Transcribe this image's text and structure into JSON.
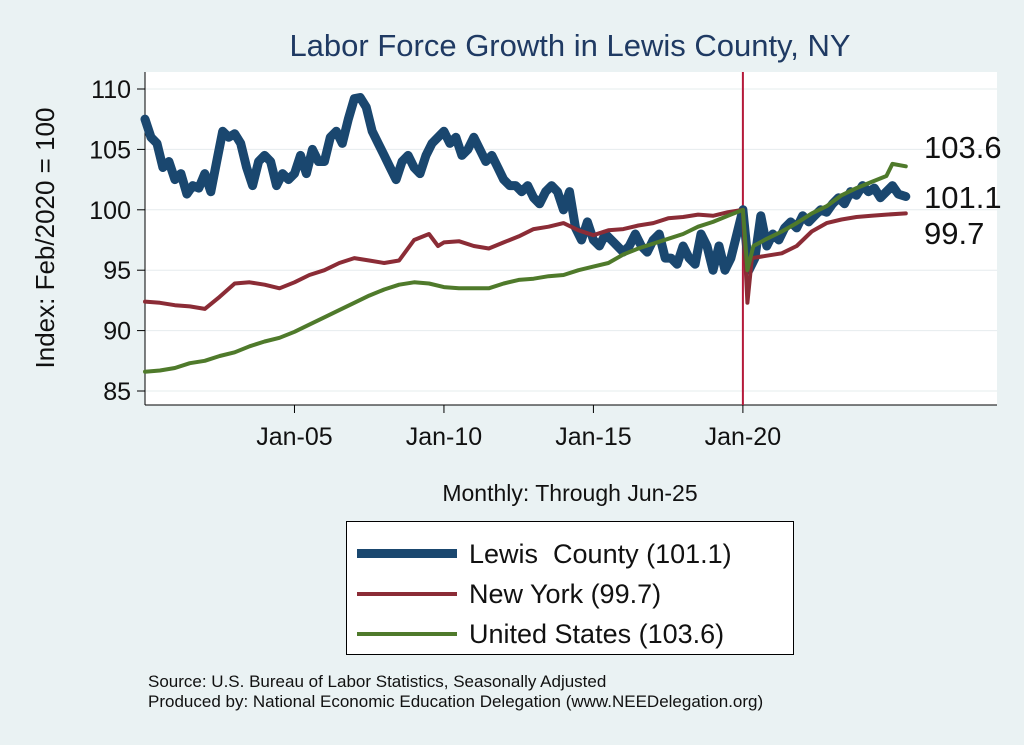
{
  "chart_data": {
    "type": "line",
    "title": "Labor Force Growth in Lewis  County, NY",
    "ylabel": "Index: Feb/2020 = 100",
    "xlabel": "Monthly: Through Jun-25",
    "ylim": [
      84,
      111
    ],
    "xlim": [
      2000.0,
      2028.5
    ],
    "yticks": [
      85,
      90,
      95,
      100,
      105,
      110
    ],
    "xticks": [
      {
        "value": 2005.0,
        "label": "Jan-05"
      },
      {
        "value": 2010.0,
        "label": "Jan-10"
      },
      {
        "value": 2015.0,
        "label": "Jan-15"
      },
      {
        "value": 2020.0,
        "label": "Jan-20"
      }
    ],
    "vline": 2020.0,
    "series": [
      {
        "name": "Lewis  County",
        "legend": "Lewis  County (101.1)",
        "end_label": "101.1",
        "color": "#1a476f",
        "width": 9,
        "points": [
          [
            2000.0,
            107.5
          ],
          [
            2000.2,
            106.0
          ],
          [
            2000.4,
            105.5
          ],
          [
            2000.6,
            103.5
          ],
          [
            2000.8,
            104.0
          ],
          [
            2001.0,
            102.5
          ],
          [
            2001.2,
            103.0
          ],
          [
            2001.4,
            101.3
          ],
          [
            2001.6,
            102.0
          ],
          [
            2001.8,
            101.8
          ],
          [
            2002.0,
            103.0
          ],
          [
            2002.2,
            101.5
          ],
          [
            2002.4,
            104.0
          ],
          [
            2002.6,
            106.5
          ],
          [
            2002.8,
            106.0
          ],
          [
            2003.0,
            106.3
          ],
          [
            2003.2,
            105.5
          ],
          [
            2003.4,
            103.5
          ],
          [
            2003.6,
            102.0
          ],
          [
            2003.8,
            104.0
          ],
          [
            2004.0,
            104.5
          ],
          [
            2004.2,
            104.0
          ],
          [
            2004.4,
            102.0
          ],
          [
            2004.6,
            103.0
          ],
          [
            2004.8,
            102.5
          ],
          [
            2005.0,
            103.0
          ],
          [
            2005.2,
            104.5
          ],
          [
            2005.4,
            103.0
          ],
          [
            2005.6,
            105.0
          ],
          [
            2005.8,
            104.0
          ],
          [
            2006.0,
            104.0
          ],
          [
            2006.2,
            106.0
          ],
          [
            2006.4,
            106.5
          ],
          [
            2006.6,
            105.5
          ],
          [
            2006.8,
            107.5
          ],
          [
            2007.0,
            109.2
          ],
          [
            2007.2,
            109.3
          ],
          [
            2007.4,
            108.5
          ],
          [
            2007.6,
            106.5
          ],
          [
            2007.8,
            105.5
          ],
          [
            2008.0,
            104.5
          ],
          [
            2008.2,
            103.5
          ],
          [
            2008.4,
            102.5
          ],
          [
            2008.6,
            104.0
          ],
          [
            2008.8,
            104.5
          ],
          [
            2009.0,
            103.5
          ],
          [
            2009.2,
            103.0
          ],
          [
            2009.4,
            104.5
          ],
          [
            2009.6,
            105.5
          ],
          [
            2009.8,
            106.0
          ],
          [
            2010.0,
            106.5
          ],
          [
            2010.2,
            105.5
          ],
          [
            2010.4,
            106.0
          ],
          [
            2010.6,
            104.5
          ],
          [
            2010.8,
            105.0
          ],
          [
            2011.0,
            106.0
          ],
          [
            2011.2,
            105.0
          ],
          [
            2011.4,
            104.0
          ],
          [
            2011.6,
            104.5
          ],
          [
            2011.8,
            103.5
          ],
          [
            2012.0,
            102.5
          ],
          [
            2012.2,
            102.0
          ],
          [
            2012.4,
            102.0
          ],
          [
            2012.6,
            101.5
          ],
          [
            2012.8,
            102.0
          ],
          [
            2013.0,
            101.0
          ],
          [
            2013.2,
            100.5
          ],
          [
            2013.4,
            101.5
          ],
          [
            2013.6,
            102.0
          ],
          [
            2013.8,
            101.5
          ],
          [
            2014.0,
            100.0
          ],
          [
            2014.2,
            101.5
          ],
          [
            2014.4,
            98.5
          ],
          [
            2014.6,
            97.5
          ],
          [
            2014.8,
            99.0
          ],
          [
            2015.0,
            97.5
          ],
          [
            2015.2,
            97.0
          ],
          [
            2015.4,
            98.0
          ],
          [
            2015.6,
            97.5
          ],
          [
            2015.8,
            97.0
          ],
          [
            2016.0,
            96.5
          ],
          [
            2016.2,
            97.0
          ],
          [
            2016.4,
            98.0
          ],
          [
            2016.6,
            97.0
          ],
          [
            2016.8,
            96.5
          ],
          [
            2017.0,
            97.5
          ],
          [
            2017.2,
            98.0
          ],
          [
            2017.4,
            96.0
          ],
          [
            2017.6,
            96.0
          ],
          [
            2017.8,
            95.5
          ],
          [
            2018.0,
            97.0
          ],
          [
            2018.2,
            96.0
          ],
          [
            2018.4,
            95.5
          ],
          [
            2018.6,
            98.0
          ],
          [
            2018.8,
            97.0
          ],
          [
            2019.0,
            95.0
          ],
          [
            2019.2,
            97.0
          ],
          [
            2019.4,
            95.0
          ],
          [
            2019.6,
            96.0
          ],
          [
            2019.8,
            98.0
          ],
          [
            2020.0,
            100.0
          ],
          [
            2020.2,
            95.0
          ],
          [
            2020.4,
            96.0
          ],
          [
            2020.6,
            99.5
          ],
          [
            2020.8,
            97.0
          ],
          [
            2021.0,
            98.0
          ],
          [
            2021.2,
            97.5
          ],
          [
            2021.4,
            98.5
          ],
          [
            2021.6,
            99.0
          ],
          [
            2021.8,
            98.5
          ],
          [
            2022.0,
            99.5
          ],
          [
            2022.2,
            99.0
          ],
          [
            2022.4,
            99.5
          ],
          [
            2022.6,
            100.0
          ],
          [
            2022.8,
            99.8
          ],
          [
            2023.0,
            100.5
          ],
          [
            2023.2,
            101.0
          ],
          [
            2023.4,
            100.5
          ],
          [
            2023.6,
            101.5
          ],
          [
            2023.8,
            101.2
          ],
          [
            2024.0,
            102.0
          ],
          [
            2024.2,
            101.5
          ],
          [
            2024.4,
            101.8
          ],
          [
            2024.6,
            101.0
          ],
          [
            2024.8,
            101.5
          ],
          [
            2025.0,
            102.0
          ],
          [
            2025.2,
            101.3
          ],
          [
            2025.45,
            101.1
          ]
        ]
      },
      {
        "name": "New York",
        "legend": "New York (99.7)",
        "end_label": "99.7",
        "color": "#8b2c36",
        "width": 4,
        "points": [
          [
            2000.0,
            92.4
          ],
          [
            2000.5,
            92.3
          ],
          [
            2001.0,
            92.1
          ],
          [
            2001.5,
            92.0
          ],
          [
            2002.0,
            91.8
          ],
          [
            2002.5,
            92.8
          ],
          [
            2003.0,
            93.9
          ],
          [
            2003.5,
            94.0
          ],
          [
            2004.0,
            93.8
          ],
          [
            2004.5,
            93.5
          ],
          [
            2005.0,
            94.0
          ],
          [
            2005.5,
            94.6
          ],
          [
            2006.0,
            95.0
          ],
          [
            2006.5,
            95.6
          ],
          [
            2007.0,
            96.0
          ],
          [
            2007.5,
            95.8
          ],
          [
            2008.0,
            95.6
          ],
          [
            2008.5,
            95.8
          ],
          [
            2009.0,
            97.5
          ],
          [
            2009.5,
            98.0
          ],
          [
            2009.8,
            97.0
          ],
          [
            2010.0,
            97.3
          ],
          [
            2010.5,
            97.4
          ],
          [
            2011.0,
            97.0
          ],
          [
            2011.5,
            96.8
          ],
          [
            2012.0,
            97.3
          ],
          [
            2012.5,
            97.8
          ],
          [
            2013.0,
            98.4
          ],
          [
            2013.5,
            98.6
          ],
          [
            2014.0,
            98.9
          ],
          [
            2014.5,
            98.3
          ],
          [
            2015.0,
            97.9
          ],
          [
            2015.5,
            98.3
          ],
          [
            2016.0,
            98.4
          ],
          [
            2016.5,
            98.7
          ],
          [
            2017.0,
            98.9
          ],
          [
            2017.5,
            99.3
          ],
          [
            2018.0,
            99.4
          ],
          [
            2018.5,
            99.6
          ],
          [
            2019.0,
            99.5
          ],
          [
            2019.5,
            99.8
          ],
          [
            2020.0,
            100.0
          ],
          [
            2020.15,
            92.3
          ],
          [
            2020.3,
            96.0
          ],
          [
            2020.8,
            96.2
          ],
          [
            2021.3,
            96.4
          ],
          [
            2021.8,
            97.0
          ],
          [
            2022.3,
            98.2
          ],
          [
            2022.8,
            98.9
          ],
          [
            2023.3,
            99.2
          ],
          [
            2023.8,
            99.4
          ],
          [
            2024.3,
            99.5
          ],
          [
            2024.8,
            99.6
          ],
          [
            2025.45,
            99.7
          ]
        ]
      },
      {
        "name": "United States",
        "legend": "United States (103.6)",
        "end_label": "103.6",
        "color": "#4f7a2b",
        "width": 4,
        "points": [
          [
            2000.0,
            86.6
          ],
          [
            2000.5,
            86.7
          ],
          [
            2001.0,
            86.9
          ],
          [
            2001.5,
            87.3
          ],
          [
            2002.0,
            87.5
          ],
          [
            2002.5,
            87.9
          ],
          [
            2003.0,
            88.2
          ],
          [
            2003.5,
            88.7
          ],
          [
            2004.0,
            89.1
          ],
          [
            2004.5,
            89.4
          ],
          [
            2005.0,
            89.9
          ],
          [
            2005.5,
            90.5
          ],
          [
            2006.0,
            91.1
          ],
          [
            2006.5,
            91.7
          ],
          [
            2007.0,
            92.3
          ],
          [
            2007.5,
            92.9
          ],
          [
            2008.0,
            93.4
          ],
          [
            2008.5,
            93.8
          ],
          [
            2009.0,
            94.0
          ],
          [
            2009.5,
            93.9
          ],
          [
            2010.0,
            93.6
          ],
          [
            2010.5,
            93.5
          ],
          [
            2011.0,
            93.5
          ],
          [
            2011.5,
            93.5
          ],
          [
            2012.0,
            93.9
          ],
          [
            2012.5,
            94.2
          ],
          [
            2013.0,
            94.3
          ],
          [
            2013.5,
            94.5
          ],
          [
            2014.0,
            94.6
          ],
          [
            2014.5,
            95.0
          ],
          [
            2015.0,
            95.3
          ],
          [
            2015.5,
            95.6
          ],
          [
            2016.0,
            96.3
          ],
          [
            2016.5,
            96.8
          ],
          [
            2017.0,
            97.2
          ],
          [
            2017.5,
            97.6
          ],
          [
            2018.0,
            98.0
          ],
          [
            2018.5,
            98.6
          ],
          [
            2019.0,
            99.0
          ],
          [
            2019.5,
            99.5
          ],
          [
            2020.0,
            100.0
          ],
          [
            2020.15,
            95.0
          ],
          [
            2020.35,
            97.0
          ],
          [
            2020.8,
            97.6
          ],
          [
            2021.3,
            98.2
          ],
          [
            2021.8,
            98.9
          ],
          [
            2022.3,
            99.7
          ],
          [
            2022.8,
            100.3
          ],
          [
            2023.3,
            101.2
          ],
          [
            2023.8,
            101.8
          ],
          [
            2024.3,
            102.3
          ],
          [
            2024.8,
            102.8
          ],
          [
            2025.0,
            103.8
          ],
          [
            2025.45,
            103.6
          ]
        ]
      }
    ]
  },
  "footer": {
    "source": "Source: U.S. Bureau of Labor Statistics, Seasonally Adjusted",
    "produced_by": "Produced by: National Economic Education Delegation (www.NEEDelegation.org)"
  }
}
